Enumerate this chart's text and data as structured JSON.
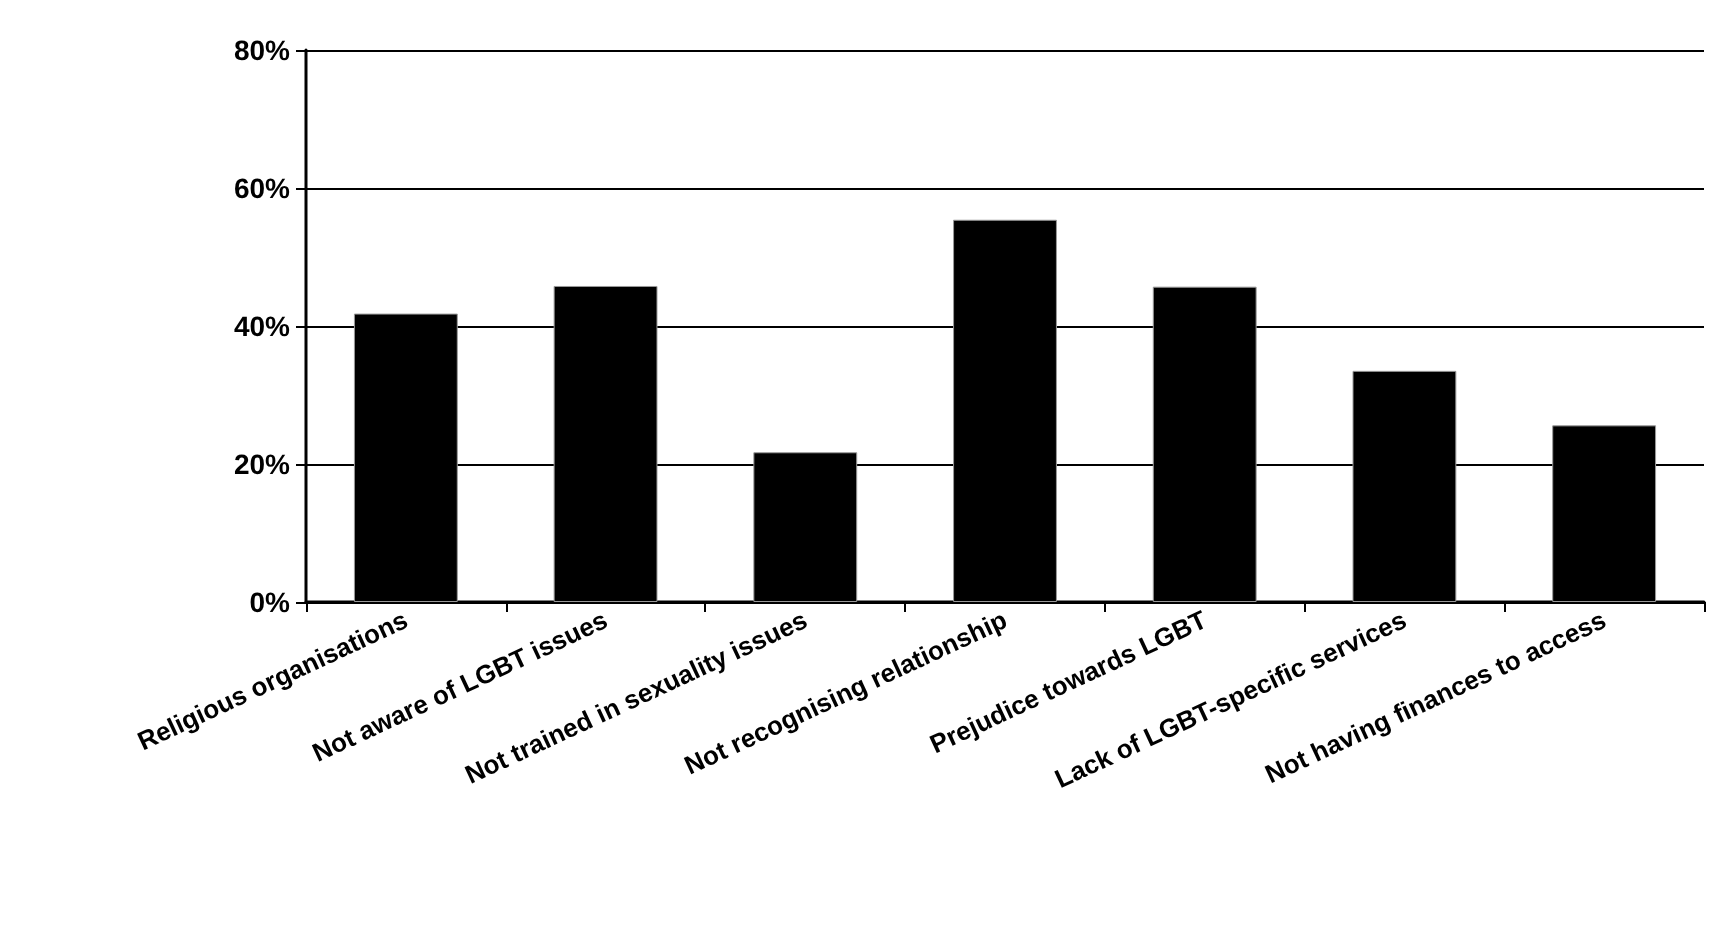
{
  "chart_data": {
    "type": "bar",
    "categories": [
      "Religious organisations",
      "Not aware of LGBT issues",
      "Not trained in sexuality issues",
      "Not recognising relationship",
      "Prejudice towards LGBT",
      "Lack of LGBT-specific services",
      "Not having finances to access"
    ],
    "values": [
      41.8,
      45.8,
      21.7,
      55.4,
      45.7,
      33.5,
      25.6
    ],
    "color": "#000000",
    "ylim": [
      0,
      80
    ],
    "yticks": [
      {
        "value": 0,
        "label": "0%"
      },
      {
        "value": 20,
        "label": "20%"
      },
      {
        "value": 40,
        "label": "40%"
      },
      {
        "value": 60,
        "label": "60%"
      },
      {
        "value": 80,
        "label": "80%"
      }
    ],
    "grid": "y"
  }
}
